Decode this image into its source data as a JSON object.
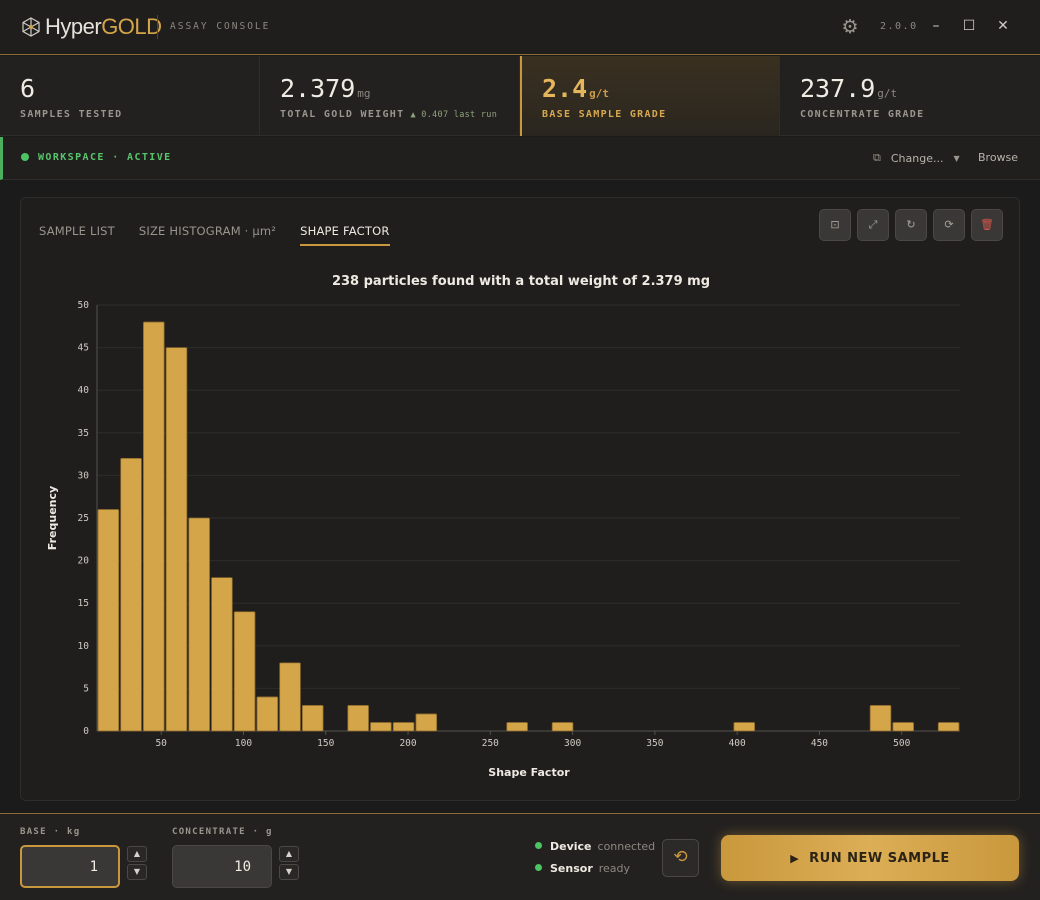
{
  "app": {
    "logo_main": "Hyper",
    "logo_accent": "GOLD",
    "subtitle": "ASSAY CONSOLE",
    "version": "2.0.0",
    "icons": {
      "settings": "gear-icon",
      "minimize": "minimize-icon",
      "maximize": "maximize-icon",
      "close": "close-icon"
    }
  },
  "stats": [
    {
      "value": "6",
      "unit": "",
      "label": "SAMPLES TESTED",
      "delta": ""
    },
    {
      "value": "2.379",
      "unit": "mg",
      "label": "TOTAL GOLD WEIGHT",
      "delta": "▲ 0.407 last run"
    },
    {
      "value": "2.4",
      "unit": "g/t",
      "label": "BASE SAMPLE GRADE",
      "delta": ""
    },
    {
      "value": "237.9",
      "unit": "g/t",
      "label": "CONCENTRATE GRADE",
      "delta": ""
    }
  ],
  "workspace": {
    "label": "WORKSPACE · ACTIVE",
    "change_label": "Change...",
    "browse_label": "Browse"
  },
  "tabs": [
    {
      "label": "SAMPLE LIST"
    },
    {
      "label": "SIZE HISTOGRAM · µm²"
    },
    {
      "label": "SHAPE FACTOR"
    }
  ],
  "tools": [
    "crop-icon",
    "expand-icon",
    "rotate-icon",
    "reset-icon",
    "trash-icon"
  ],
  "chart_data": {
    "type": "bar",
    "title": "238 particles found with a total weight of 2.379 mg",
    "xlabel": "Shape Factor",
    "ylabel": "Frequency",
    "bin_width": 13.8,
    "x_start": 11,
    "values": [
      26,
      32,
      48,
      45,
      25,
      18,
      14,
      4,
      8,
      3,
      0,
      3,
      1,
      1,
      2,
      0,
      0,
      0,
      1,
      0,
      1,
      0,
      0,
      0,
      0,
      0,
      0,
      0,
      1,
      0,
      0,
      0,
      0,
      0,
      3,
      1,
      0,
      1
    ],
    "xlim": [
      11,
      535.4
    ],
    "ylim": [
      0,
      50
    ],
    "xticks": [
      50,
      100,
      150,
      200,
      250,
      300,
      350,
      400,
      450,
      500
    ],
    "yticks": [
      0,
      5,
      10,
      15,
      20,
      25,
      30,
      35,
      40,
      45,
      50
    ],
    "grid": true,
    "bar_color": "#d5a549"
  },
  "footer": {
    "base_label": "BASE · kg",
    "base_value": "1",
    "concentrate_label": "CONCENTRATE · g",
    "concentrate_value": "10",
    "device_name": "Device",
    "device_state": "connected",
    "sensor_name": "Sensor",
    "sensor_state": "ready",
    "run_label": "RUN NEW SAMPLE"
  },
  "colors": {
    "accent": "#c9973e",
    "ok": "#4cc463",
    "danger": "#d2584a"
  }
}
